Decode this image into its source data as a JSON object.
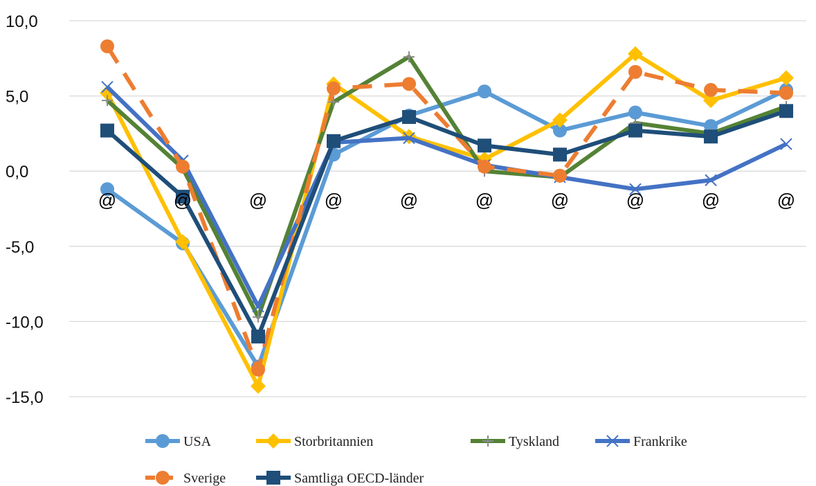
{
  "chart_data": {
    "type": "line",
    "title": "",
    "xlabel": "",
    "ylabel": "",
    "ylim": [
      -15,
      10
    ],
    "yticks": [
      10,
      5,
      0,
      -5,
      -10,
      -15
    ],
    "ytick_labels": [
      "10,0",
      "5,0",
      "0,0",
      "-5,0",
      "-10,0",
      "-15,0"
    ],
    "categories": [
      "@",
      "@",
      "@",
      "@",
      "@",
      "@",
      "@",
      "@",
      "@",
      "@"
    ],
    "grid": "horizontal",
    "legend_position": "bottom",
    "series": [
      {
        "name": "USA",
        "color": "#5b9bd5",
        "marker": "circle",
        "dash": "solid",
        "values": [
          -1.2,
          -4.8,
          -13.0,
          1.1,
          3.7,
          5.3,
          2.7,
          3.9,
          3.0,
          5.4
        ]
      },
      {
        "name": "Storbritannien",
        "color": "#ffc000",
        "marker": "diamond",
        "dash": "solid",
        "values": [
          5.2,
          -4.7,
          -14.3,
          5.8,
          2.3,
          0.8,
          3.4,
          7.8,
          4.7,
          6.2
        ]
      },
      {
        "name": "Tyskland",
        "color": "#548235",
        "marker": "plus",
        "dash": "solid",
        "values": [
          4.7,
          0.2,
          -9.7,
          4.6,
          7.6,
          0.0,
          -0.4,
          3.2,
          2.5,
          4.3
        ]
      },
      {
        "name": "Frankrike",
        "color": "#4472c4",
        "marker": "x",
        "dash": "solid",
        "values": [
          5.6,
          0.7,
          -9.0,
          1.9,
          2.2,
          0.4,
          -0.4,
          -1.2,
          -0.6,
          1.8
        ]
      },
      {
        "name": "Sverige",
        "color": "#ed7d31",
        "marker": "circle",
        "dash": "dashed",
        "values": [
          8.3,
          0.3,
          -13.2,
          5.5,
          5.8,
          0.3,
          -0.3,
          6.6,
          5.4,
          5.2
        ]
      },
      {
        "name": "Samtliga OECD-länder",
        "color": "#1f4e79",
        "marker": "square",
        "dash": "solid",
        "values": [
          2.7,
          -1.7,
          -11.0,
          2.0,
          3.6,
          1.7,
          1.1,
          2.7,
          2.3,
          4.0
        ]
      }
    ]
  }
}
